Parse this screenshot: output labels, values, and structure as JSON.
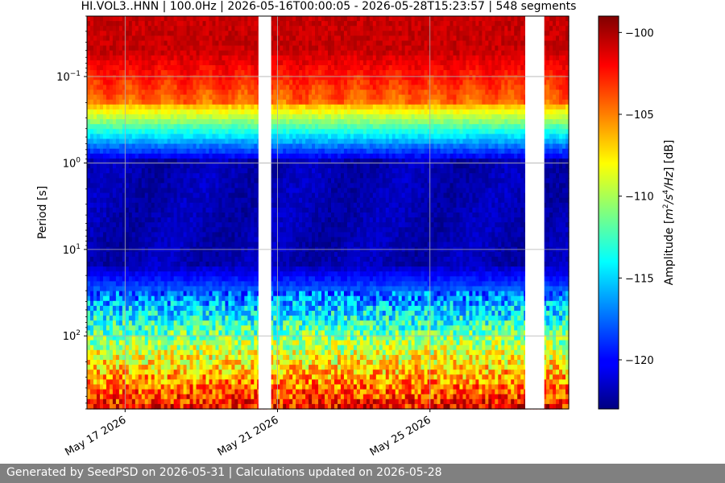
{
  "chart_data": {
    "type": "heatmap",
    "title": "HI.VOL3..HNN | 100.0Hz | 2026-05-16T00:00:05 - 2026-05-28T15:23:57 | 548 segments",
    "ylabel": "Period [s]",
    "xlabel": "",
    "x_range": [
      "2026-05-16T00:00:05",
      "2026-05-28T15:23:57"
    ],
    "x_ticks": [
      "May 17 2026",
      "May 21 2026",
      "May 25 2026"
    ],
    "x_tick_dates": [
      "2026-05-17",
      "2026-05-21",
      "2026-05-25"
    ],
    "y_scale": "log",
    "y_range_s": [
      0.02,
      700
    ],
    "y_ticks": [
      {
        "base": "10",
        "exp": "−1",
        "value": 0.1
      },
      {
        "base": "10",
        "exp": "0",
        "value": 1
      },
      {
        "base": "10",
        "exp": "1",
        "value": 10
      },
      {
        "base": "10",
        "exp": "2",
        "value": 100
      }
    ],
    "y_inverted": true,
    "grid": true,
    "data_gaps": [
      {
        "start": "2026-05-20T12:00:00",
        "end": "2026-05-20T20:00:00"
      },
      {
        "start": "2026-05-27T12:00:00",
        "end": "2026-05-28T00:00:00"
      }
    ],
    "colorbar": {
      "label": "Amplitude [m²/s⁴/Hz] [dB]",
      "label_parts": {
        "pre": "Amplitude [",
        "u1": "m",
        "e1": "2",
        "u2": "/s",
        "e2": "4",
        "u3": "/Hz",
        "post": "] [dB]"
      },
      "range": [
        -123,
        -99
      ],
      "ticks": [
        "−100",
        "−105",
        "−110",
        "−115",
        "−120"
      ],
      "tick_values": [
        -100,
        -105,
        -110,
        -115,
        -120
      ],
      "colormap": "jet"
    }
  },
  "footer": {
    "text": "Generated by SeedPSD on 2026-05-31 | Calculations updated on 2026-05-28",
    "bg_color": "#808080"
  }
}
